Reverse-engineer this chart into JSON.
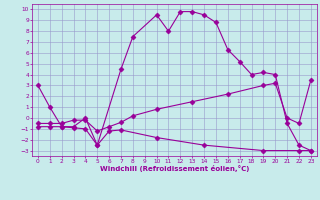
{
  "xlabel": "Windchill (Refroidissement éolien,°C)",
  "bg_color": "#c8ebeb",
  "grid_color": "#9999cc",
  "line_color": "#990099",
  "xlim": [
    -0.5,
    23.5
  ],
  "ylim": [
    -3.5,
    10.5
  ],
  "xticks": [
    0,
    1,
    2,
    3,
    4,
    5,
    6,
    7,
    8,
    9,
    10,
    11,
    12,
    13,
    14,
    15,
    16,
    17,
    18,
    19,
    20,
    21,
    22,
    23
  ],
  "yticks": [
    -3,
    -2,
    -1,
    0,
    1,
    2,
    3,
    4,
    5,
    6,
    7,
    8,
    9,
    10
  ],
  "line1_x": [
    0,
    1,
    2,
    3,
    4,
    5,
    7,
    8,
    10,
    11,
    12,
    13,
    14,
    15,
    16,
    17,
    18,
    19,
    20,
    21,
    22,
    23
  ],
  "line1_y": [
    3.0,
    1.0,
    -0.8,
    -0.8,
    0.0,
    -2.5,
    4.5,
    7.5,
    9.5,
    8.0,
    9.8,
    9.8,
    9.5,
    8.8,
    6.3,
    5.2,
    4.0,
    4.2,
    4.0,
    -0.5,
    -2.5,
    -3.0
  ],
  "line2_x": [
    0,
    1,
    2,
    3,
    4,
    5,
    6,
    7,
    8,
    10,
    13,
    16,
    19,
    20,
    21,
    22,
    23
  ],
  "line2_y": [
    -0.5,
    -0.5,
    -0.5,
    -0.2,
    -0.2,
    -1.2,
    -0.8,
    -0.4,
    0.2,
    0.8,
    1.5,
    2.2,
    3.0,
    3.2,
    0.0,
    -0.5,
    3.5
  ],
  "line3_x": [
    0,
    1,
    2,
    3,
    4,
    5,
    6,
    7,
    10,
    14,
    19,
    22,
    23
  ],
  "line3_y": [
    -0.8,
    -0.8,
    -0.8,
    -0.9,
    -1.0,
    -2.5,
    -1.2,
    -1.1,
    -1.8,
    -2.5,
    -3.0,
    -3.0,
    -3.0
  ]
}
